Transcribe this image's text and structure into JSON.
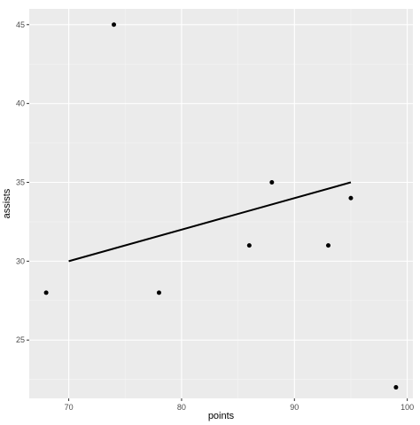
{
  "chart_data": {
    "type": "scatter",
    "title": "",
    "xlabel": "points",
    "ylabel": "assists",
    "xlim": [
      66.5,
      100.5
    ],
    "ylim": [
      21.3,
      46.0
    ],
    "x_ticks": [
      70,
      80,
      90,
      100
    ],
    "y_ticks": [
      25,
      30,
      35,
      40,
      45
    ],
    "x_tick_labels": [
      "70",
      "80",
      "90",
      "100"
    ],
    "y_tick_labels": [
      "25",
      "30",
      "35",
      "40",
      "45"
    ],
    "grid": true,
    "legend": "none",
    "series": [
      {
        "points": [
          {
            "x": 68,
            "y": 28
          },
          {
            "x": 74,
            "y": 45
          },
          {
            "x": 78,
            "y": 28
          },
          {
            "x": 86,
            "y": 31
          },
          {
            "x": 88,
            "y": 35
          },
          {
            "x": 93,
            "y": 31
          },
          {
            "x": 95,
            "y": 34
          },
          {
            "x": 99,
            "y": 22
          }
        ]
      }
    ],
    "line_segment": {
      "x": [
        70,
        95
      ],
      "y": [
        30,
        35
      ]
    },
    "colors": {
      "panel_background": "#ebebeb",
      "grid_major": "#ffffff",
      "grid_minor": "#f5f5f5",
      "points": "#000000",
      "line": "#000000",
      "tick_text": "#4d4d4d",
      "axis_title_text": "#000000"
    }
  }
}
